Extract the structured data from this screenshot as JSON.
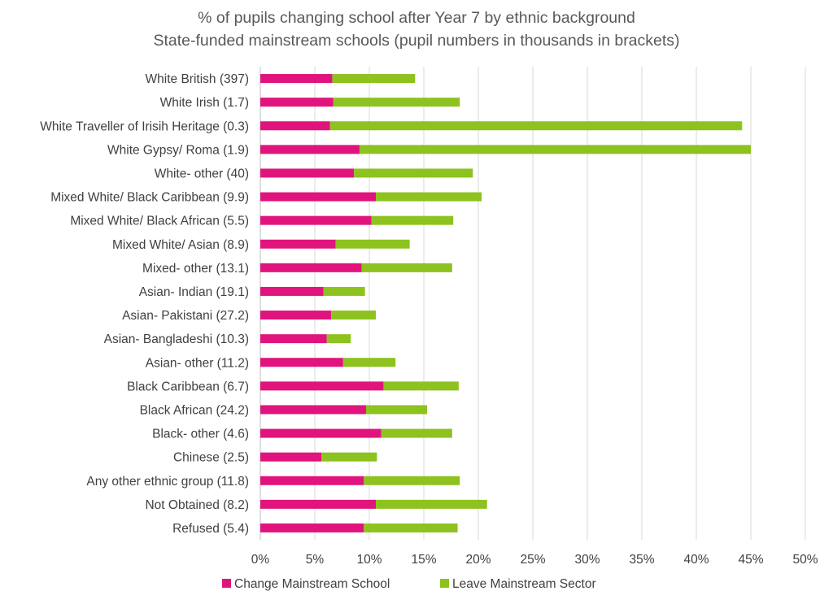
{
  "chart_data": {
    "type": "bar",
    "orientation": "horizontal",
    "stacked": true,
    "title": "% of pupils changing school after Year 7 by ethnic background",
    "subtitle": "State-funded mainstream schools (pupil numbers in thousands in brackets)",
    "categories": [
      "White British (397)",
      "White Irish (1.7)",
      "White Traveller of Irisih Heritage (0.3)",
      "White Gypsy/ Roma (1.9)",
      "White- other (40)",
      "Mixed White/ Black Caribbean (9.9)",
      "Mixed White/ Black African (5.5)",
      "Mixed White/ Asian (8.9)",
      "Mixed- other (13.1)",
      "Asian- Indian (19.1)",
      "Asian- Pakistani (27.2)",
      "Asian- Bangladeshi (10.3)",
      "Asian- other (11.2)",
      "Black Caribbean (6.7)",
      "Black African (24.2)",
      "Black- other (4.6)",
      "Chinese (2.5)",
      "Any other ethnic group (11.8)",
      "Not Obtained (8.2)",
      "Refused (5.4)"
    ],
    "series": [
      {
        "name": "Change Mainstream School",
        "color": "#e0147c",
        "values": [
          6.6,
          6.7,
          6.4,
          9.1,
          8.6,
          10.6,
          10.2,
          6.9,
          9.3,
          5.8,
          6.5,
          6.1,
          7.6,
          11.3,
          9.7,
          11.1,
          5.6,
          9.5,
          10.6,
          9.5
        ]
      },
      {
        "name": "Leave Mainstream Sector",
        "color": "#8dc21f",
        "values": [
          7.6,
          11.6,
          37.8,
          35.9,
          10.9,
          9.7,
          7.5,
          6.8,
          8.3,
          3.8,
          4.1,
          2.2,
          4.8,
          6.9,
          5.6,
          6.5,
          5.1,
          8.8,
          10.2,
          8.6
        ]
      }
    ],
    "xlim": [
      0,
      50
    ],
    "xticks": [
      "0%",
      "5%",
      "10%",
      "15%",
      "20%",
      "25%",
      "30%",
      "35%",
      "40%",
      "45%",
      "50%"
    ],
    "grid": true,
    "legend_position": "bottom"
  }
}
